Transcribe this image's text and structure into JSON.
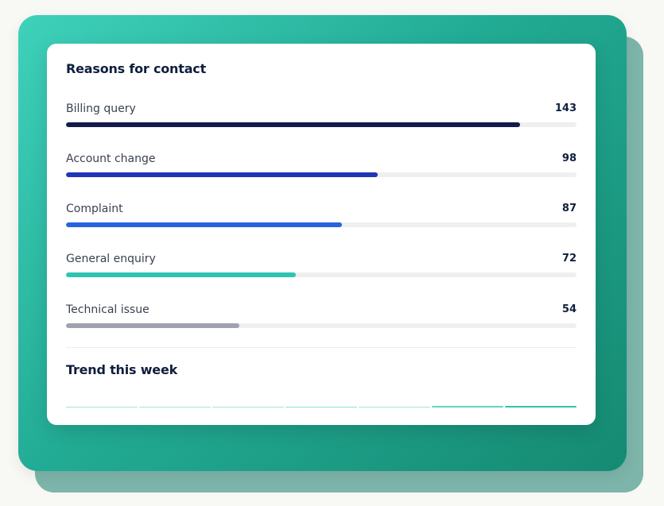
{
  "card": {
    "title": "Reasons for contact",
    "trend_title": "Trend this week"
  },
  "colors": {
    "panel_start": "#3fd1bb",
    "panel_end": "#168a72",
    "shadow_panel": "#7db5aa",
    "track": "#efefef"
  },
  "chart_data": {
    "type": "bar",
    "orientation": "horizontal",
    "title": "Reasons for contact",
    "categories": [
      "Billing query",
      "Account change",
      "Complaint",
      "General enquiry",
      "Technical issue"
    ],
    "values": [
      143,
      98,
      87,
      72,
      54
    ],
    "bar_fill_fractions": [
      0.89,
      0.61,
      0.54,
      0.45,
      0.34
    ],
    "bar_colors": [
      "#141a4a",
      "#2035b8",
      "#2a63e0",
      "#2ec4b0",
      "#a0a3ad"
    ]
  },
  "trend": {
    "title": "Trend this week",
    "segments": [
      {
        "opacity": 0.45,
        "color": "#2ec4b0"
      },
      {
        "opacity": 0.45,
        "color": "#2ec4b0"
      },
      {
        "opacity": 0.45,
        "color": "#2ec4b0"
      },
      {
        "opacity": 0.55,
        "color": "#2ec4b0"
      },
      {
        "opacity": 0.45,
        "color": "#2ec4b0"
      },
      {
        "opacity": 0.75,
        "color": "#2ec4b0"
      },
      {
        "opacity": 1.0,
        "color": "#2ec4b0"
      }
    ]
  }
}
